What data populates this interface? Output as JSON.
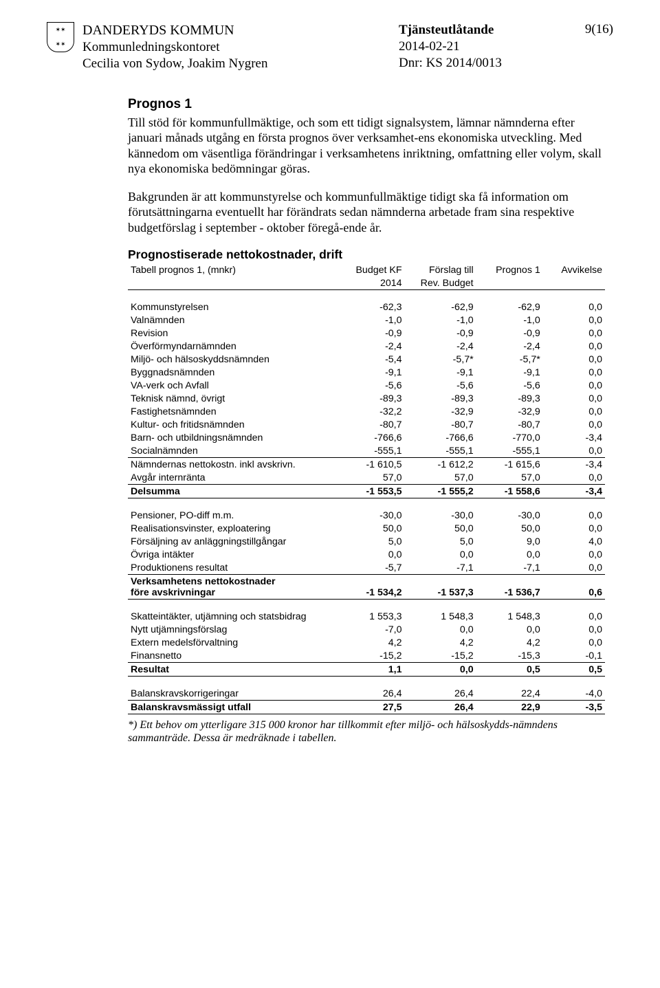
{
  "header": {
    "org": "DANDERYDS KOMMUN",
    "dept": "Kommunledningskontoret",
    "authors": "Cecilia von Sydow, Joakim Nygren",
    "doc_type": "Tjänsteutlåtande",
    "date": "2014-02-21",
    "dnr": "Dnr: KS 2014/0013",
    "pagenum": "9(16)"
  },
  "section": {
    "title": "Prognos 1",
    "para1": "Till stöd för kommunfullmäktige, och som ett tidigt signalsystem, lämnar nämnderna efter januari månads utgång en första prognos över verksamhet-ens ekonomiska utveckling. Med kännedom om väsentliga förändringar i verksamhetens inriktning, omfattning eller volym, skall nya ekonomiska bedömningar göras.",
    "para2": "Bakgrunden är att kommunstyrelse och kommunfullmäktige tidigt ska få information om förutsättningarna eventuellt har förändrats sedan nämnderna arbetade fram sina respektive budgetförslag i september - oktober föregå-ende år."
  },
  "table": {
    "title": "Prognostiserade nettokostnader, drift",
    "head_label": "Tabell prognos 1, (mnkr)",
    "col1a": "Budget KF",
    "col1b": "2014",
    "col2a": "Förslag till",
    "col2b": "Rev. Budget",
    "col3": "Prognos 1",
    "col4": "Avvikelse",
    "block1": [
      [
        "Kommunstyrelsen",
        "-62,3",
        "-62,9",
        "-62,9",
        "0,0"
      ],
      [
        "Valnämnden",
        "-1,0",
        "-1,0",
        "-1,0",
        "0,0"
      ],
      [
        "Revision",
        "-0,9",
        "-0,9",
        "-0,9",
        "0,0"
      ],
      [
        "Överförmyndarnämnden",
        "-2,4",
        "-2,4",
        "-2,4",
        "0,0"
      ],
      [
        "Miljö- och hälsoskyddsnämnden",
        "-5,4",
        "-5,7*",
        "-5,7*",
        "0,0"
      ],
      [
        "Byggnadsnämnden",
        "-9,1",
        "-9,1",
        "-9,1",
        "0,0"
      ],
      [
        "VA-verk och Avfall",
        "-5,6",
        "-5,6",
        "-5,6",
        "0,0"
      ],
      [
        "Teknisk nämnd, övrigt",
        "-89,3",
        "-89,3",
        "-89,3",
        "0,0"
      ],
      [
        "Fastighetsnämnden",
        "-32,2",
        "-32,9",
        "-32,9",
        "0,0"
      ],
      [
        "Kultur- och fritidsnämnden",
        "-80,7",
        "-80,7",
        "-80,7",
        "0,0"
      ],
      [
        "Barn- och utbildningsnämnden",
        "-766,6",
        "-766,6",
        "-770,0",
        "-3,4"
      ],
      [
        "Socialnämnden",
        "-555,1",
        "-555,1",
        "-555,1",
        "0,0"
      ]
    ],
    "subtotal1_label": "Nämndernas nettokostn. inkl avskrivn.",
    "subtotal1": [
      "-1 610,5",
      "-1 612,2",
      "-1 615,6",
      "-3,4"
    ],
    "internranta_label": "Avgår internränta",
    "internranta": [
      "57,0",
      "57,0",
      "57,0",
      "0,0"
    ],
    "delsumma_label": "Delsumma",
    "delsumma": [
      "-1 553,5",
      "-1 555,2",
      "-1 558,6",
      "-3,4"
    ],
    "block2": [
      [
        "Pensioner, PO-diff m.m.",
        "-30,0",
        "-30,0",
        "-30,0",
        "0,0"
      ],
      [
        "Realisationsvinster, exploatering",
        "50,0",
        "50,0",
        "50,0",
        "0,0"
      ],
      [
        "Försäljning av anläggningstillgångar",
        "5,0",
        "5,0",
        "9,0",
        "4,0"
      ],
      [
        "Övriga intäkter",
        "0,0",
        "0,0",
        "0,0",
        "0,0"
      ],
      [
        "Produktionens resultat",
        "-5,7",
        "-7,1",
        "-7,1",
        "0,0"
      ]
    ],
    "verks_label1": "Verksamhetens nettokostnader",
    "verks_label2": "före avskrivningar",
    "verks": [
      "-1 534,2",
      "-1 537,3",
      "-1 536,7",
      "0,6"
    ],
    "block3": [
      [
        "Skatteintäkter, utjämning och statsbidrag",
        "1 553,3",
        "1 548,3",
        "1 548,3",
        "0,0"
      ],
      [
        "Nytt utjämningsförslag",
        "-7,0",
        "0,0",
        "0,0",
        "0,0"
      ],
      [
        "Extern medelsförvaltning",
        "4,2",
        "4,2",
        "4,2",
        "0,0"
      ],
      [
        "Finansnetto",
        "-15,2",
        "-15,2",
        "-15,3",
        "-0,1"
      ]
    ],
    "resultat_label": "Resultat",
    "resultat": [
      "1,1",
      "0,0",
      "0,5",
      "0,5"
    ],
    "block4": [
      [
        "Balanskravskorrigeringar",
        "26,4",
        "26,4",
        "22,4",
        "-4,0"
      ]
    ],
    "balans_label": "Balanskravsmässigt utfall",
    "balans": [
      "27,5",
      "26,4",
      "22,9",
      "-3,5"
    ],
    "footnote": "*) Ett behov om ytterligare 315 000 kronor har tillkommit efter miljö- och hälsoskydds-nämndens sammanträde. Dessa är medräknade i tabellen."
  }
}
